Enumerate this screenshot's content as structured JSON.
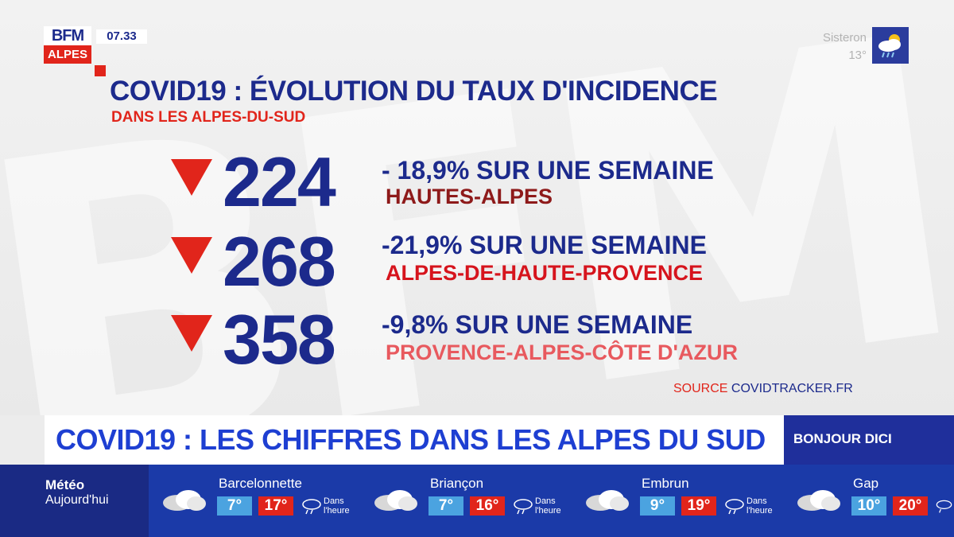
{
  "channel": {
    "logo_top": "BFM",
    "logo_bottom": "ALPES",
    "time": "07.33"
  },
  "weather_corner": {
    "city": "Sisteron",
    "temp": "13°",
    "icon": "sun-cloud-rain-icon"
  },
  "headline": {
    "title": "COVID19 : ÉVOLUTION DU TAUX D'INCIDENCE",
    "subtitle": "DANS LES ALPES-DU-SUD"
  },
  "stats": [
    {
      "value": "224",
      "change": "- 18,9% SUR UNE SEMAINE",
      "area": "HAUTES-ALPES",
      "area_color": "#8e1a1a"
    },
    {
      "value": "268",
      "change": "-21,9% SUR UNE SEMAINE",
      "area": "ALPES-DE-HAUTE-PROVENCE",
      "area_color": "#d6141d"
    },
    {
      "value": "358",
      "change": "-9,8% SUR UNE SEMAINE",
      "area": "PROVENCE-ALPES-CÔTE D'AZUR",
      "area_color": "#e8595e"
    }
  ],
  "source": {
    "label": "SOURCE",
    "value": "COVIDTRACKER.FR"
  },
  "ticker": {
    "text": "COVID19 : LES CHIFFRES DANS LES ALPES DU SUD",
    "program": "BONJOUR DICI"
  },
  "meteo": {
    "title": "Météo",
    "subtitle": "Aujourd'hui",
    "cities": [
      {
        "name": "Barcelonnette",
        "min": "7°",
        "max": "17°",
        "note": "Dans l'heure"
      },
      {
        "name": "Briançon",
        "min": "7°",
        "max": "16°",
        "note": "Dans l'heure"
      },
      {
        "name": "Embrun",
        "min": "9°",
        "max": "19°",
        "note": "Dans l'heure"
      },
      {
        "name": "Gap",
        "min": "10°",
        "max": "20°",
        "note": ""
      }
    ]
  }
}
